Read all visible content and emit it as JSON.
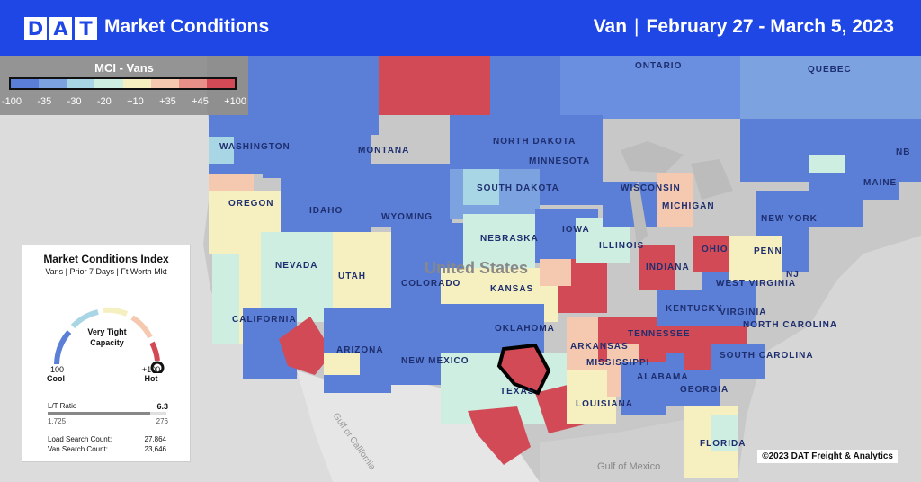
{
  "header": {
    "logo_letters": [
      "D",
      "A",
      "T"
    ],
    "title": "Market Conditions",
    "equipment": "Van",
    "separator": "|",
    "date_range": "February 27 - March 5, 2023"
  },
  "legend": {
    "title": "MCI - Vans",
    "colors": [
      "#5b7fd6",
      "#7ca3e0",
      "#a9d6e5",
      "#cdeee0",
      "#f6f0c0",
      "#f5c9b0",
      "#e7908a",
      "#d34a57"
    ],
    "ticks": [
      "-100",
      "-35",
      "-30",
      "-20",
      "+10",
      "+35",
      "+45",
      "+100"
    ]
  },
  "map_labels": {
    "states": [
      "WASHINGTON",
      "MONTANA",
      "NORTH DAKOTA",
      "MINNESOTA",
      "OREGON",
      "IDAHO",
      "WYOMING",
      "SOUTH DAKOTA",
      "NEBRASKA",
      "IOWA",
      "NEVADA",
      "UTAH",
      "COLORADO",
      "KANSAS",
      "CALIFORNIA",
      "ARIZONA",
      "NEW MEXICO",
      "OKLAHOMA",
      "TEXAS",
      "ARKANSAS",
      "LOUISIANA",
      "MISSISSIPPI",
      "ALABAMA",
      "GEORGIA",
      "FLORIDA",
      "TENNESSEE",
      "KENTUCKY",
      "VIRGINIA",
      "NORTH CAROLINA",
      "SOUTH CAROLINA",
      "WEST VIRGINIA",
      "INDIANA",
      "ILLINOIS",
      "MICHIGAN",
      "WISCONSIN",
      "OHIO",
      "PENN",
      "NEW YORK",
      "MAINE",
      "NJ",
      "NB",
      "QUEBEC",
      "ONTARIO"
    ],
    "country": "United States",
    "water": [
      "Gulf of California",
      "Gulf of Mexico"
    ]
  },
  "card": {
    "title": "Market Conditions Index",
    "subtitle": "Vans | Prior 7 Days | Ft Worth Mkt",
    "gauge_label_line1": "Very Tight",
    "gauge_label_line2": "Capacity",
    "gauge_value": 1.0,
    "min_value": "-100",
    "min_label": "Cool",
    "max_value": "+100",
    "max_label": "Hot",
    "lt_label": "L/T Ratio",
    "lt_value": "6.3",
    "lt_left": "1,725",
    "lt_right": "276",
    "load_label": "Load Search Count:",
    "load_value": "27,864",
    "van_label": "Van Search Count:",
    "van_value": "23,646"
  },
  "copyright": "©2023 DAT Freight & Analytics"
}
